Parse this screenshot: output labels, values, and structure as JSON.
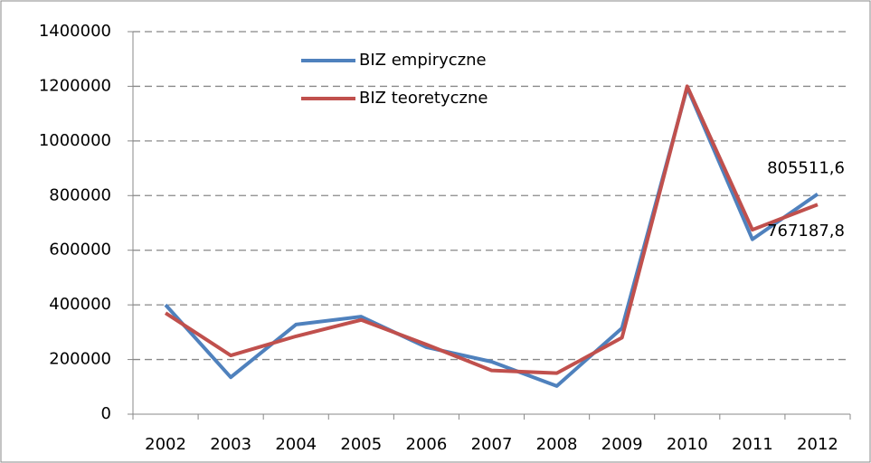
{
  "chart_data": {
    "type": "line",
    "categories": [
      "2002",
      "2003",
      "2004",
      "2005",
      "2006",
      "2007",
      "2008",
      "2009",
      "2010",
      "2011",
      "2012"
    ],
    "series": [
      {
        "name": "BIZ empiryczne",
        "color": "#4f81bd",
        "values": [
          400000,
          135000,
          328000,
          357000,
          245000,
          192000,
          103000,
          315000,
          1195000,
          640000,
          805511.6
        ],
        "value_labels": [
          null,
          null,
          null,
          null,
          null,
          null,
          null,
          null,
          null,
          null,
          "805511,6"
        ]
      },
      {
        "name": "BIZ teoretyczne",
        "color": "#c0504d",
        "values": [
          370000,
          215000,
          285000,
          345000,
          255000,
          160000,
          150000,
          280000,
          1200000,
          675000,
          767187.8
        ],
        "value_labels": [
          null,
          null,
          null,
          null,
          null,
          null,
          null,
          null,
          null,
          null,
          "767187,8"
        ]
      }
    ],
    "ylim": [
      0,
      1400000
    ],
    "yticks": [
      0,
      200000,
      400000,
      600000,
      800000,
      1000000,
      1200000,
      1400000
    ],
    "grid": true,
    "legend": "top-left"
  }
}
